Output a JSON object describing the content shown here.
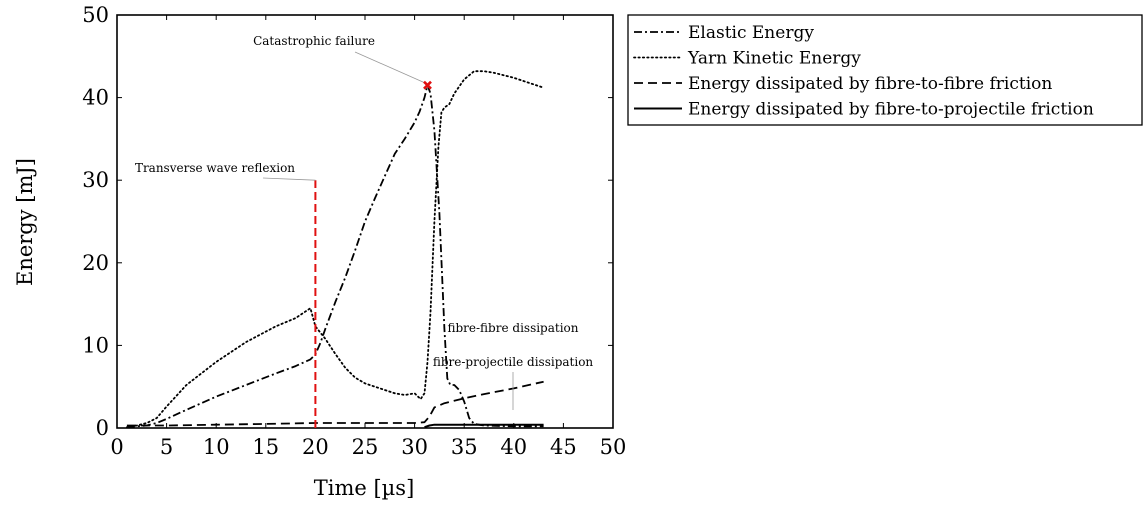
{
  "chart_data": {
    "type": "line",
    "xlabel": "Time [µs]",
    "ylabel": "Energy [mJ]",
    "xlim": [
      0,
      50
    ],
    "ylim": [
      0,
      50
    ],
    "xticks": [
      0,
      5,
      10,
      15,
      20,
      25,
      30,
      35,
      40,
      45,
      50
    ],
    "yticks": [
      0,
      10,
      20,
      30,
      40,
      50
    ],
    "grid": false,
    "legend_position": "outside-right-top",
    "series": [
      {
        "name": "Elastic Energy",
        "style": "dashdot",
        "color": "#000000",
        "points": [
          [
            1,
            0.1
          ],
          [
            2,
            0.2
          ],
          [
            3,
            0.3
          ],
          [
            4,
            0.6
          ],
          [
            5,
            1.1
          ],
          [
            7,
            2.2
          ],
          [
            10,
            3.8
          ],
          [
            13,
            5.2
          ],
          [
            16,
            6.6
          ],
          [
            18,
            7.5
          ],
          [
            19.5,
            8.3
          ],
          [
            20,
            8.9
          ],
          [
            20.5,
            10.3
          ],
          [
            21,
            12
          ],
          [
            22,
            15.2
          ],
          [
            23,
            18.2
          ],
          [
            24,
            21.5
          ],
          [
            25,
            25
          ],
          [
            26,
            27.8
          ],
          [
            27,
            30.5
          ],
          [
            28,
            33.2
          ],
          [
            29,
            35
          ],
          [
            30,
            37
          ],
          [
            30.5,
            38.3
          ],
          [
            31,
            40
          ],
          [
            31.3,
            41.5
          ],
          [
            31.6,
            40.5
          ],
          [
            32,
            36
          ],
          [
            32.5,
            26
          ],
          [
            33,
            12
          ],
          [
            33.3,
            6
          ],
          [
            33.6,
            5.2
          ],
          [
            34,
            5.2
          ],
          [
            34.5,
            4.6
          ],
          [
            35,
            3.2
          ],
          [
            35.5,
            1.2
          ],
          [
            36,
            0.5
          ],
          [
            37,
            0.3
          ],
          [
            40,
            0.2
          ],
          [
            43,
            0.2
          ]
        ]
      },
      {
        "name": "Yarn Kinetic Energy",
        "style": "dotted",
        "color": "#000000",
        "points": [
          [
            1,
            0.1
          ],
          [
            2,
            0.3
          ],
          [
            3,
            0.6
          ],
          [
            4,
            1.2
          ],
          [
            5,
            2.6
          ],
          [
            7,
            5.2
          ],
          [
            10,
            8
          ],
          [
            13,
            10.4
          ],
          [
            16,
            12.3
          ],
          [
            18,
            13.3
          ],
          [
            19.5,
            14.5
          ],
          [
            20,
            12.3
          ],
          [
            21,
            10.8
          ],
          [
            22,
            9
          ],
          [
            23,
            7.3
          ],
          [
            24,
            6.1
          ],
          [
            25,
            5.4
          ],
          [
            26,
            5
          ],
          [
            27,
            4.6
          ],
          [
            28,
            4.2
          ],
          [
            29,
            4
          ],
          [
            30,
            4.2
          ],
          [
            30.6,
            3.5
          ],
          [
            31,
            4.2
          ],
          [
            31.3,
            8
          ],
          [
            31.6,
            14
          ],
          [
            32,
            25
          ],
          [
            32.4,
            34
          ],
          [
            32.7,
            38.2
          ],
          [
            33,
            38.8
          ],
          [
            33.5,
            39.2
          ],
          [
            34,
            40.5
          ],
          [
            35,
            42.2
          ],
          [
            36,
            43.2
          ],
          [
            37,
            43.2
          ],
          [
            38,
            43
          ],
          [
            40,
            42.4
          ],
          [
            43,
            41.2
          ]
        ]
      },
      {
        "name": "Energy dissipated by fibre-to-fibre friction",
        "style": "dashed",
        "color": "#000000",
        "points": [
          [
            1,
            0.3
          ],
          [
            5,
            0.3
          ],
          [
            10,
            0.4
          ],
          [
            15,
            0.5
          ],
          [
            20,
            0.6
          ],
          [
            25,
            0.6
          ],
          [
            30,
            0.6
          ],
          [
            31,
            0.7
          ],
          [
            31.5,
            1.4
          ],
          [
            32,
            2.5
          ],
          [
            33,
            3
          ],
          [
            35,
            3.6
          ],
          [
            37,
            4.1
          ],
          [
            40,
            4.8
          ],
          [
            43,
            5.6
          ]
        ]
      },
      {
        "name": "Energy dissipated by fibre-to-projectile friction",
        "style": "solid",
        "color": "#000000",
        "points": [
          [
            31,
            0.1
          ],
          [
            31.5,
            0.3
          ],
          [
            32,
            0.4
          ],
          [
            35,
            0.4
          ],
          [
            40,
            0.4
          ],
          [
            43,
            0.4
          ]
        ]
      }
    ],
    "marker": {
      "x": 31.3,
      "y": 41.5,
      "symbol": "x",
      "color": "#e01010"
    },
    "vline": {
      "x": 20,
      "y0": 0,
      "y1": 30,
      "color": "#e01010"
    },
    "annotations": [
      {
        "text": "Catastrophic failure",
        "x": 31.3,
        "y": 41.5
      },
      {
        "text": "Transverse wave reflexion",
        "x": 20,
        "y": 30
      },
      {
        "text": "fibre-fibre dissipation",
        "x": 40,
        "y": 4.8
      },
      {
        "text": "fibre-projectile dissipation",
        "x": 40,
        "y": 0.4
      }
    ]
  }
}
